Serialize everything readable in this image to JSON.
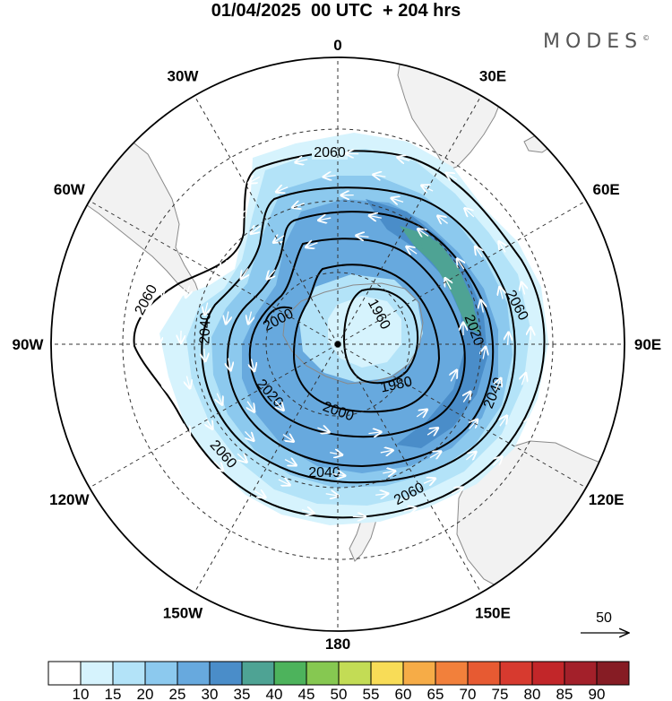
{
  "title": "01/04/2025  00 UTC  + 204 hrs",
  "brand": "MODES",
  "brand_mark": "©",
  "longitude_labels": [
    {
      "lon": 0,
      "text": "0"
    },
    {
      "lon": 30,
      "text": "30E"
    },
    {
      "lon": 60,
      "text": "60E"
    },
    {
      "lon": 90,
      "text": "90E"
    },
    {
      "lon": 120,
      "text": "120E"
    },
    {
      "lon": 150,
      "text": "150E"
    },
    {
      "lon": 180,
      "text": "180"
    },
    {
      "lon": -150,
      "text": "150W"
    },
    {
      "lon": -120,
      "text": "120W"
    },
    {
      "lon": -90,
      "text": "90W"
    },
    {
      "lon": -60,
      "text": "60W"
    },
    {
      "lon": -30,
      "text": "30W"
    }
  ],
  "contours": [
    {
      "value": 1960,
      "label": "1960"
    },
    {
      "value": 1980,
      "label": "1980"
    },
    {
      "value": 2000,
      "label": "2000"
    },
    {
      "value": 2020,
      "label": "2020"
    },
    {
      "value": 2040,
      "label": "2040"
    },
    {
      "value": 2060,
      "label": "2060"
    }
  ],
  "vector_reference": {
    "label": "50"
  },
  "colorbar": {
    "ticks": [
      "10",
      "15",
      "20",
      "25",
      "30",
      "35",
      "40",
      "45",
      "50",
      "55",
      "60",
      "65",
      "70",
      "75",
      "80",
      "85",
      "90"
    ],
    "colors": [
      "#ffffff",
      "#d6f3fd",
      "#b3e3f8",
      "#8cc9ee",
      "#67a9de",
      "#4a8dc9",
      "#4ea394",
      "#4db35c",
      "#86c851",
      "#c3dc55",
      "#f8dc57",
      "#f6ac47",
      "#f2803b",
      "#e75a32",
      "#d73a2f",
      "#c22629",
      "#a3202a",
      "#861c24"
    ]
  },
  "colors": {
    "land": "#f2f2f2",
    "coast": "#8a8a8a",
    "grid": "#333333"
  }
}
